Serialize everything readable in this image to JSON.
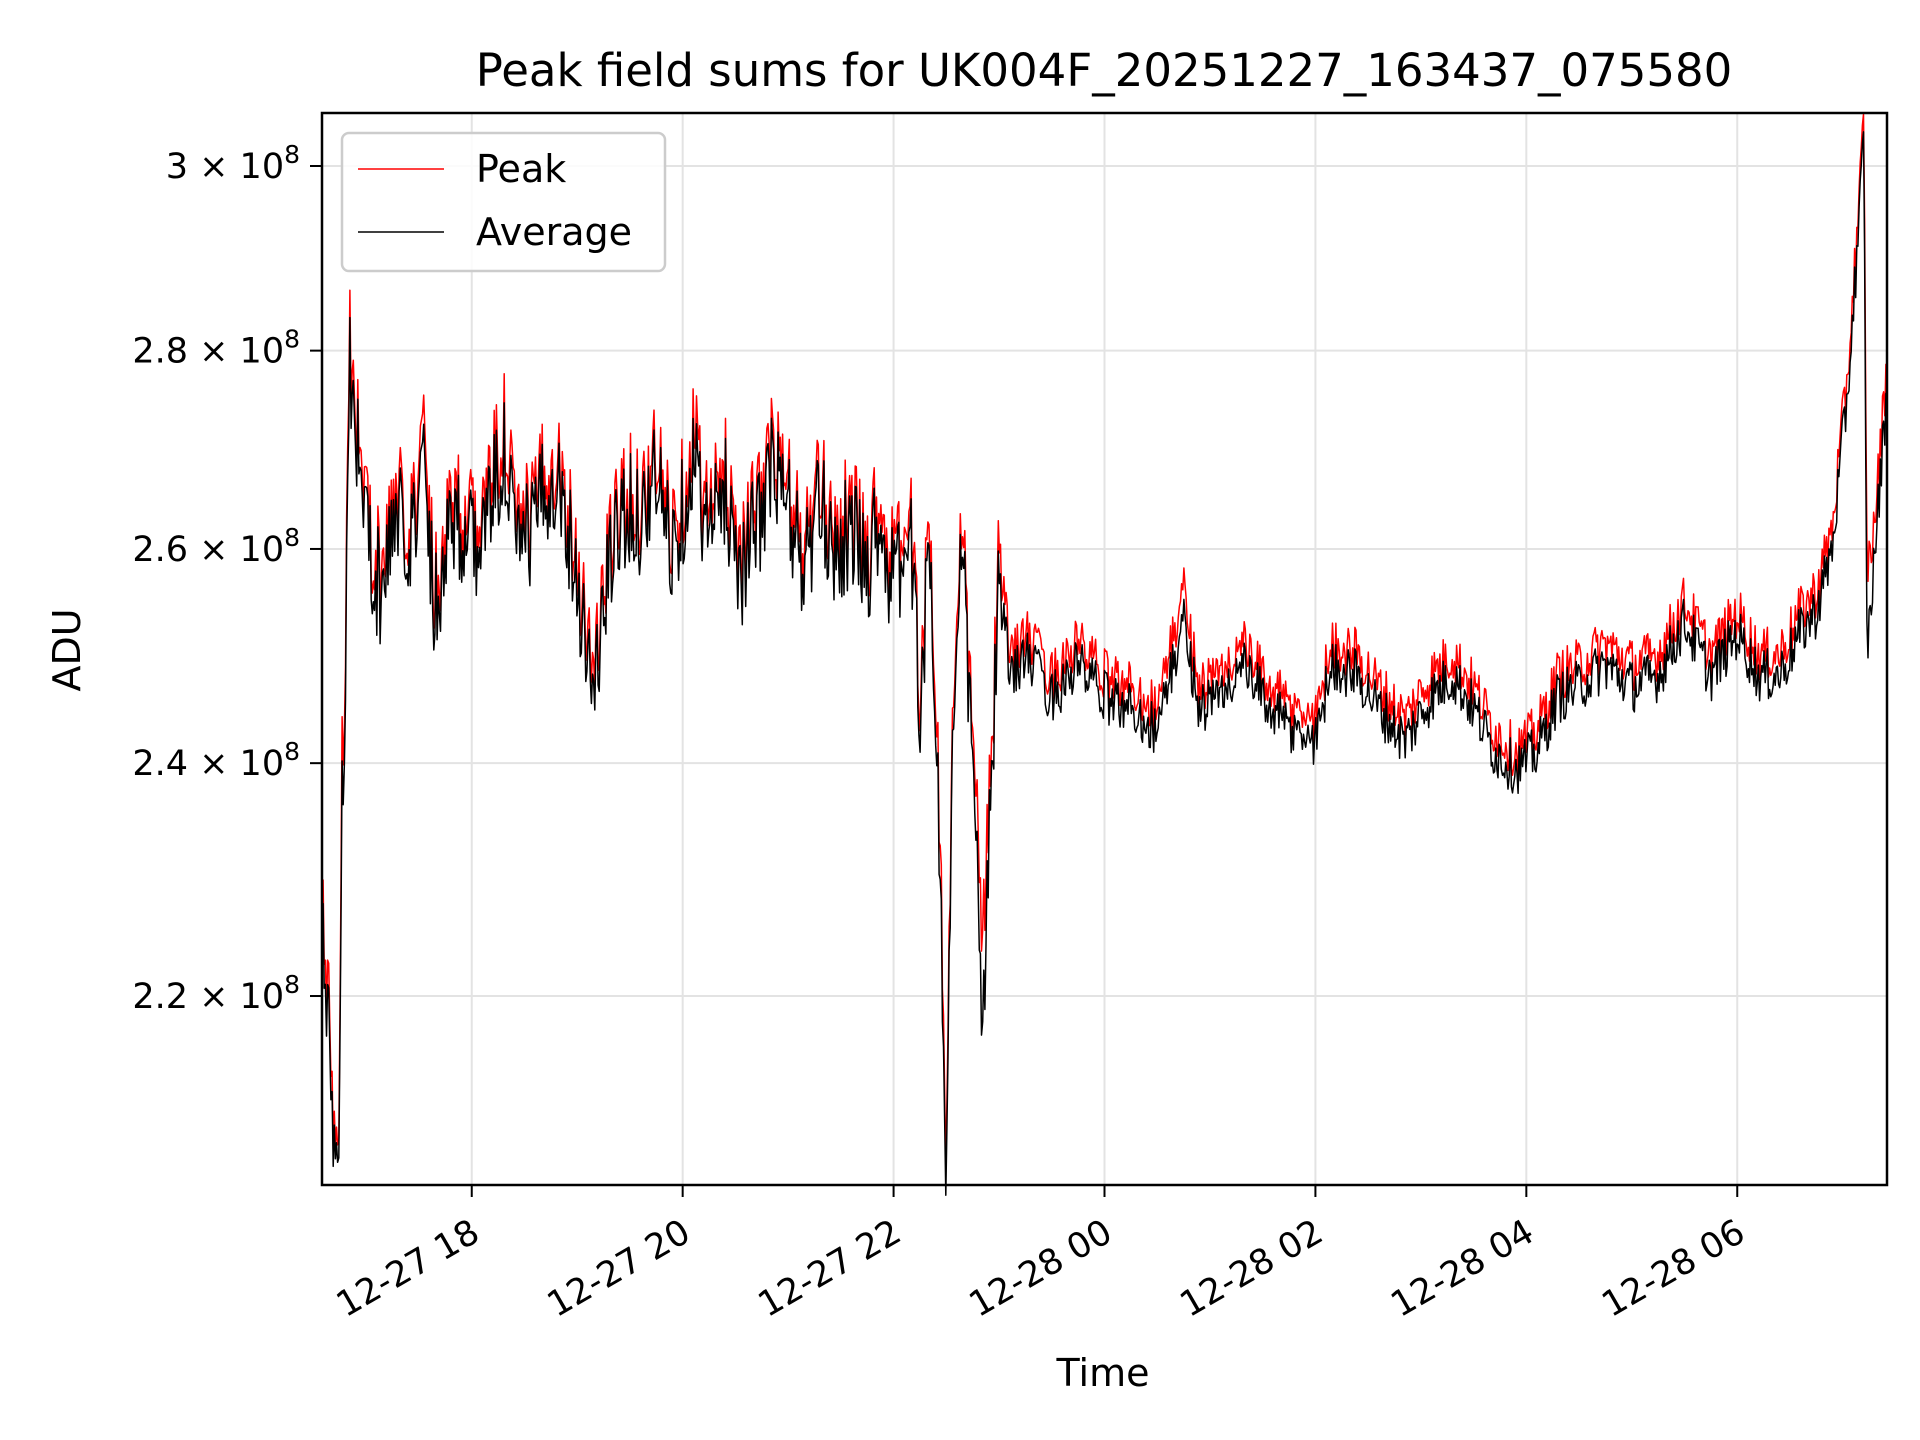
{
  "chart_data": {
    "type": "line",
    "title": "Peak field sums for UK004F_20251227_163437_075580",
    "xlabel": "Time",
    "ylabel": "ADU",
    "yscale": "log",
    "grid": true,
    "legend_position": "top-left",
    "xlim_hours": [
      16.58,
      31.42
    ],
    "ylim": [
      205000000,
      306000000
    ],
    "x_ticks": [
      {
        "hour": 18,
        "label": "12-27 18"
      },
      {
        "hour": 20,
        "label": "12-27 20"
      },
      {
        "hour": 22,
        "label": "12-27 22"
      },
      {
        "hour": 24,
        "label": "12-28 00"
      },
      {
        "hour": 26,
        "label": "12-28 02"
      },
      {
        "hour": 28,
        "label": "12-28 04"
      },
      {
        "hour": 30,
        "label": "12-28 06"
      }
    ],
    "y_ticks": [
      {
        "value": 220000000,
        "mantissa": "2.2",
        "exp": "8"
      },
      {
        "value": 240000000,
        "mantissa": "2.4",
        "exp": "8"
      },
      {
        "value": 260000000,
        "mantissa": "2.6",
        "exp": "8"
      },
      {
        "value": 280000000,
        "mantissa": "2.8",
        "exp": "8"
      },
      {
        "value": 300000000,
        "mantissa": "3",
        "exp": "8"
      }
    ],
    "series": [
      {
        "name": "Peak",
        "color": "#ff0000",
        "points": [
          [
            16.58,
            230000000.0
          ],
          [
            16.62,
            220000000.0
          ],
          [
            16.66,
            218000000.0
          ],
          [
            16.7,
            208500000.0
          ],
          [
            16.74,
            210000000.0
          ],
          [
            16.77,
            242000000.0
          ],
          [
            16.8,
            250000000.0
          ],
          [
            16.84,
            283000000.0
          ],
          [
            16.88,
            276000000.0
          ],
          [
            16.95,
            269000000.0
          ],
          [
            17.05,
            261000000.0
          ],
          [
            17.15,
            257000000.0
          ],
          [
            17.25,
            265000000.0
          ],
          [
            17.35,
            264000000.0
          ],
          [
            17.45,
            264000000.0
          ],
          [
            17.55,
            272000000.0
          ],
          [
            17.65,
            256000000.0
          ],
          [
            17.8,
            266000000.0
          ],
          [
            18.0,
            262000000.0
          ],
          [
            18.15,
            265000000.0
          ],
          [
            18.3,
            273000000.0
          ],
          [
            18.45,
            261000000.0
          ],
          [
            18.6,
            265000000.0
          ],
          [
            18.8,
            270000000.0
          ],
          [
            18.95,
            262000000.0
          ],
          [
            19.05,
            256000000.0
          ],
          [
            19.15,
            248000000.0
          ],
          [
            19.3,
            260000000.0
          ],
          [
            19.45,
            266000000.0
          ],
          [
            19.6,
            265000000.0
          ],
          [
            19.75,
            269000000.0
          ],
          [
            19.9,
            262000000.0
          ],
          [
            20.0,
            266000000.0
          ],
          [
            20.1,
            272000000.0
          ],
          [
            20.25,
            263000000.0
          ],
          [
            20.4,
            268000000.0
          ],
          [
            20.55,
            260000000.0
          ],
          [
            20.7,
            264000000.0
          ],
          [
            20.85,
            270000000.0
          ],
          [
            21.0,
            266000000.0
          ],
          [
            21.15,
            260000000.0
          ],
          [
            21.3,
            266000000.0
          ],
          [
            21.45,
            262000000.0
          ],
          [
            21.6,
            264000000.0
          ],
          [
            21.75,
            260000000.0
          ],
          [
            21.85,
            265000000.0
          ],
          [
            22.0,
            258000000.0
          ],
          [
            22.15,
            264000000.0
          ],
          [
            22.25,
            248000000.0
          ],
          [
            22.35,
            262000000.0
          ],
          [
            22.45,
            230000000.0
          ],
          [
            22.5,
            206000000.0
          ],
          [
            22.55,
            240000000.0
          ],
          [
            22.65,
            262000000.0
          ],
          [
            22.75,
            242000000.0
          ],
          [
            22.85,
            225000000.0
          ],
          [
            22.92,
            238000000.0
          ],
          [
            23.0,
            260000000.0
          ],
          [
            23.1,
            250000000.0
          ],
          [
            23.25,
            252000000.0
          ],
          [
            23.5,
            248000000.0
          ],
          [
            23.75,
            251000000.0
          ],
          [
            24.0,
            248000000.0
          ],
          [
            24.25,
            247000000.0
          ],
          [
            24.5,
            245000000.0
          ],
          [
            24.75,
            256000000.0
          ],
          [
            24.9,
            247000000.0
          ],
          [
            25.1,
            248000000.0
          ],
          [
            25.3,
            251000000.0
          ],
          [
            25.5,
            248000000.0
          ],
          [
            25.75,
            245000000.0
          ],
          [
            26.0,
            244000000.0
          ],
          [
            26.15,
            251000000.0
          ],
          [
            26.4,
            250000000.0
          ],
          [
            26.6,
            247000000.0
          ],
          [
            26.85,
            244000000.0
          ],
          [
            27.1,
            248000000.0
          ],
          [
            27.3,
            250000000.0
          ],
          [
            27.5,
            247000000.0
          ],
          [
            27.7,
            243000000.0
          ],
          [
            27.9,
            241000000.0
          ],
          [
            28.1,
            243000000.0
          ],
          [
            28.3,
            248000000.0
          ],
          [
            28.5,
            249000000.0
          ],
          [
            28.75,
            251000000.0
          ],
          [
            29.0,
            249000000.0
          ],
          [
            29.25,
            250000000.0
          ],
          [
            29.5,
            255000000.0
          ],
          [
            29.75,
            250000000.0
          ],
          [
            30.0,
            254000000.0
          ],
          [
            30.2,
            250000000.0
          ],
          [
            30.4,
            250000000.0
          ],
          [
            30.6,
            254000000.0
          ],
          [
            30.75,
            256000000.0
          ],
          [
            30.9,
            262000000.0
          ],
          [
            31.05,
            278000000.0
          ],
          [
            31.15,
            295000000.0
          ],
          [
            31.2,
            305000000.0
          ],
          [
            31.23,
            258000000.0
          ],
          [
            31.3,
            262000000.0
          ],
          [
            31.42,
            279000000.0
          ]
        ]
      },
      {
        "name": "Average",
        "color": "#000000",
        "points": [
          [
            16.58,
            228000000.0
          ],
          [
            16.62,
            218000000.0
          ],
          [
            16.66,
            216000000.0
          ],
          [
            16.7,
            207500000.0
          ],
          [
            16.74,
            208500000.0
          ],
          [
            16.77,
            238000000.0
          ],
          [
            16.8,
            247000000.0
          ],
          [
            16.84,
            280000000.0
          ],
          [
            16.88,
            274000000.0
          ],
          [
            16.95,
            267000000.0
          ],
          [
            17.05,
            259000000.0
          ],
          [
            17.15,
            255000000.0
          ],
          [
            17.25,
            263000000.0
          ],
          [
            17.35,
            262000000.0
          ],
          [
            17.45,
            262000000.0
          ],
          [
            17.55,
            269000000.0
          ],
          [
            17.65,
            254000000.0
          ],
          [
            17.8,
            264000000.0
          ],
          [
            18.0,
            260000000.0
          ],
          [
            18.15,
            263000000.0
          ],
          [
            18.3,
            270000000.0
          ],
          [
            18.45,
            259000000.0
          ],
          [
            18.6,
            263000000.0
          ],
          [
            18.8,
            268000000.0
          ],
          [
            18.95,
            260000000.0
          ],
          [
            19.05,
            254000000.0
          ],
          [
            19.15,
            246000000.0
          ],
          [
            19.3,
            258000000.0
          ],
          [
            19.45,
            264000000.0
          ],
          [
            19.6,
            263000000.0
          ],
          [
            19.75,
            267000000.0
          ],
          [
            19.9,
            260000000.0
          ],
          [
            20.0,
            264000000.0
          ],
          [
            20.1,
            269000000.0
          ],
          [
            20.25,
            261000000.0
          ],
          [
            20.4,
            266000000.0
          ],
          [
            20.55,
            258000000.0
          ],
          [
            20.7,
            262000000.0
          ],
          [
            20.85,
            268000000.0
          ],
          [
            21.0,
            264000000.0
          ],
          [
            21.15,
            258000000.0
          ],
          [
            21.3,
            264000000.0
          ],
          [
            21.45,
            260000000.0
          ],
          [
            21.6,
            262000000.0
          ],
          [
            21.75,
            258000000.0
          ],
          [
            21.85,
            263000000.0
          ],
          [
            22.0,
            256000000.0
          ],
          [
            22.15,
            262000000.0
          ],
          [
            22.25,
            246000000.0
          ],
          [
            22.35,
            260000000.0
          ],
          [
            22.45,
            227000000.0
          ],
          [
            22.5,
            204000000.0
          ],
          [
            22.55,
            238000000.0
          ],
          [
            22.65,
            260000000.0
          ],
          [
            22.75,
            240000000.0
          ],
          [
            22.85,
            217000000.0
          ],
          [
            22.92,
            236000000.0
          ],
          [
            23.0,
            257000000.0
          ],
          [
            23.1,
            248000000.0
          ],
          [
            23.25,
            250000000.0
          ],
          [
            23.5,
            246000000.0
          ],
          [
            23.75,
            249000000.0
          ],
          [
            24.0,
            246000000.0
          ],
          [
            24.25,
            245000000.0
          ],
          [
            24.5,
            243000000.0
          ],
          [
            24.75,
            253000000.0
          ],
          [
            24.9,
            245000000.0
          ],
          [
            25.1,
            246000000.0
          ],
          [
            25.3,
            249000000.0
          ],
          [
            25.5,
            246000000.0
          ],
          [
            25.75,
            243000000.0
          ],
          [
            26.0,
            242000000.0
          ],
          [
            26.15,
            249000000.0
          ],
          [
            26.4,
            248000000.0
          ],
          [
            26.6,
            245000000.0
          ],
          [
            26.85,
            242000000.0
          ],
          [
            27.1,
            246000000.0
          ],
          [
            27.3,
            248000000.0
          ],
          [
            27.5,
            245000000.0
          ],
          [
            27.7,
            241000000.0
          ],
          [
            27.9,
            239500000.0
          ],
          [
            28.1,
            241000000.0
          ],
          [
            28.3,
            246000000.0
          ],
          [
            28.5,
            247000000.0
          ],
          [
            28.75,
            249000000.0
          ],
          [
            29.0,
            247000000.0
          ],
          [
            29.25,
            248000000.0
          ],
          [
            29.5,
            253000000.0
          ],
          [
            29.75,
            248000000.0
          ],
          [
            30.0,
            252000000.0
          ],
          [
            30.2,
            248000000.0
          ],
          [
            30.4,
            248000000.0
          ],
          [
            30.6,
            252000000.0
          ],
          [
            30.75,
            254000000.0
          ],
          [
            30.9,
            260000000.0
          ],
          [
            31.05,
            276000000.0
          ],
          [
            31.15,
            293000000.0
          ],
          [
            31.2,
            303000000.0
          ],
          [
            31.23,
            250000000.0
          ],
          [
            31.3,
            259000000.0
          ],
          [
            31.42,
            276000000.0
          ]
        ]
      }
    ]
  }
}
